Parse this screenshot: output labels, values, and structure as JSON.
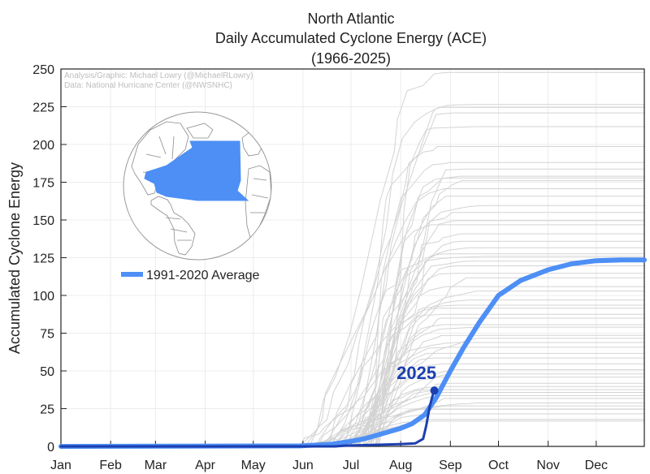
{
  "chart_data": {
    "type": "line",
    "title": [
      "North Atlantic",
      "Daily Accumulated Cyclone Energy (ACE)",
      "(1966-2025)"
    ],
    "xlabel": "",
    "ylabel": "Accumulated Cyclone Energy",
    "credits": [
      "Analysis/Graphic: Michael Lowry (@MichaelRLowry)",
      "Data: National Hurricane Center (@NWSNHC)"
    ],
    "x_range_day_of_year": [
      1,
      365
    ],
    "ylim": [
      0,
      250
    ],
    "y_ticks": [
      0,
      25,
      50,
      75,
      100,
      125,
      150,
      175,
      200,
      225,
      250
    ],
    "x_ticks": [
      {
        "label": "Jan",
        "day": 1
      },
      {
        "label": "Feb",
        "day": 32
      },
      {
        "label": "Mar",
        "day": 60
      },
      {
        "label": "Apr",
        "day": 91
      },
      {
        "label": "May",
        "day": 121
      },
      {
        "label": "Jun",
        "day": 152
      },
      {
        "label": "Jul",
        "day": 182
      },
      {
        "label": "Aug",
        "day": 213
      },
      {
        "label": "Sep",
        "day": 244
      },
      {
        "label": "Oct",
        "day": 274
      },
      {
        "label": "Nov",
        "day": 305
      },
      {
        "label": "Dec",
        "day": 335
      }
    ],
    "grid": true,
    "legend": {
      "placement": "left-middle",
      "entries": [
        "1991-2020 Average"
      ]
    },
    "colors": {
      "average": "#4d8ff5",
      "current": "#1c3fb0",
      "history": "#d3d3d3"
    },
    "average_series": {
      "name": "1991-2020 Average",
      "points": [
        [
          1,
          0
        ],
        [
          150,
          0.3
        ],
        [
          170,
          1.5
        ],
        [
          180,
          3
        ],
        [
          190,
          5
        ],
        [
          200,
          8
        ],
        [
          213,
          12
        ],
        [
          220,
          15
        ],
        [
          228,
          21
        ],
        [
          235,
          32
        ],
        [
          244,
          50
        ],
        [
          252,
          65
        ],
        [
          262,
          82
        ],
        [
          274,
          100
        ],
        [
          288,
          110
        ],
        [
          305,
          117
        ],
        [
          320,
          121
        ],
        [
          335,
          123
        ],
        [
          350,
          123.5
        ],
        [
          365,
          123.5
        ]
      ]
    },
    "current_series": {
      "name": "2025",
      "points": [
        [
          1,
          0
        ],
        [
          172,
          0
        ],
        [
          178,
          0.5
        ],
        [
          196,
          1
        ],
        [
          212,
          1.5
        ],
        [
          222,
          2
        ],
        [
          227,
          5
        ],
        [
          229,
          14
        ],
        [
          231,
          26
        ],
        [
          233,
          34
        ],
        [
          234,
          37
        ]
      ]
    },
    "historical_final_values": [
      248,
      227,
      225,
      221,
      212,
      199,
      188,
      184,
      179,
      178,
      176,
      171,
      166,
      160,
      155,
      150,
      147,
      141,
      136,
      132,
      128,
      126,
      123,
      120,
      115,
      112,
      106,
      103,
      97,
      94,
      92,
      88,
      85,
      81,
      79,
      74,
      72,
      69,
      66,
      62,
      59,
      55,
      51,
      48,
      46,
      42,
      40,
      38,
      36,
      34,
      32,
      29,
      27,
      25,
      22,
      18,
      17
    ],
    "current_label": "2025"
  },
  "icons": {
    "globe": "globe-map-icon"
  }
}
